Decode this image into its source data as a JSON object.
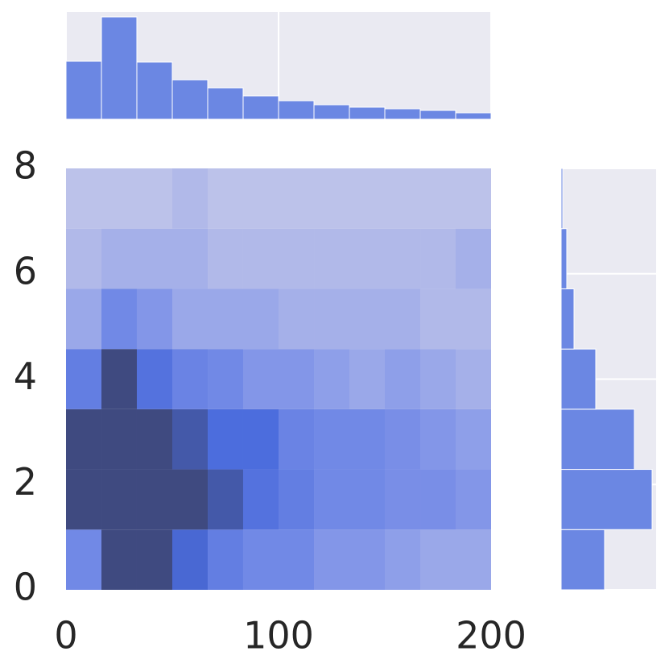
{
  "chart_data": {
    "type": "hist2d",
    "xbins": [
      0,
      16.67,
      33.33,
      50,
      66.67,
      83.33,
      100,
      116.67,
      133.33,
      150,
      166.67,
      183.33,
      200
    ],
    "ybins": [
      0,
      1.143,
      2.286,
      3.429,
      4.571,
      5.714,
      6.857,
      8
    ],
    "counts": [
      [
        4,
        10,
        10,
        7,
        5,
        4,
        4,
        3,
        3,
        2.5,
        2,
        2
      ],
      [
        10,
        10,
        10,
        10,
        8.5,
        6,
        5,
        4,
        4,
        3.5,
        3.5,
        3
      ],
      [
        10,
        10,
        10,
        8.5,
        6.5,
        6.5,
        4.5,
        4,
        4,
        3.5,
        3,
        2.5
      ],
      [
        5,
        10,
        6,
        4.5,
        4,
        3,
        3,
        2.5,
        2,
        2.5,
        2,
        1.5
      ],
      [
        2,
        4,
        3,
        2,
        2,
        2,
        1.5,
        1.5,
        1.5,
        1.5,
        1,
        1
      ],
      [
        1,
        1.5,
        1.5,
        1.5,
        1,
        1,
        1,
        1,
        1,
        1,
        1,
        1.5
      ],
      [
        0.5,
        0.5,
        0.5,
        1,
        0.5,
        0.5,
        0.5,
        0.5,
        0.5,
        0.5,
        0.5,
        0.5
      ]
    ],
    "colors": [
      "#c8cbea",
      "#7b90e8",
      "#4a6bdc",
      "#3f4a80"
    ],
    "xlim": [
      0,
      200
    ],
    "ylim": [
      0,
      8
    ],
    "xticks": [
      0,
      100,
      200
    ],
    "yticks": [
      0,
      2,
      4,
      6,
      8
    ],
    "marginal_color": "#6b87e3",
    "top_counts": [
      72,
      127,
      71,
      49,
      39,
      29,
      23,
      18,
      15,
      13,
      11,
      8
    ],
    "top_lim": [
      0,
      133
    ],
    "right_counts": [
      54,
      113,
      91,
      43,
      16,
      7,
      2
    ],
    "right_lim": [
      0,
      118
    ]
  }
}
